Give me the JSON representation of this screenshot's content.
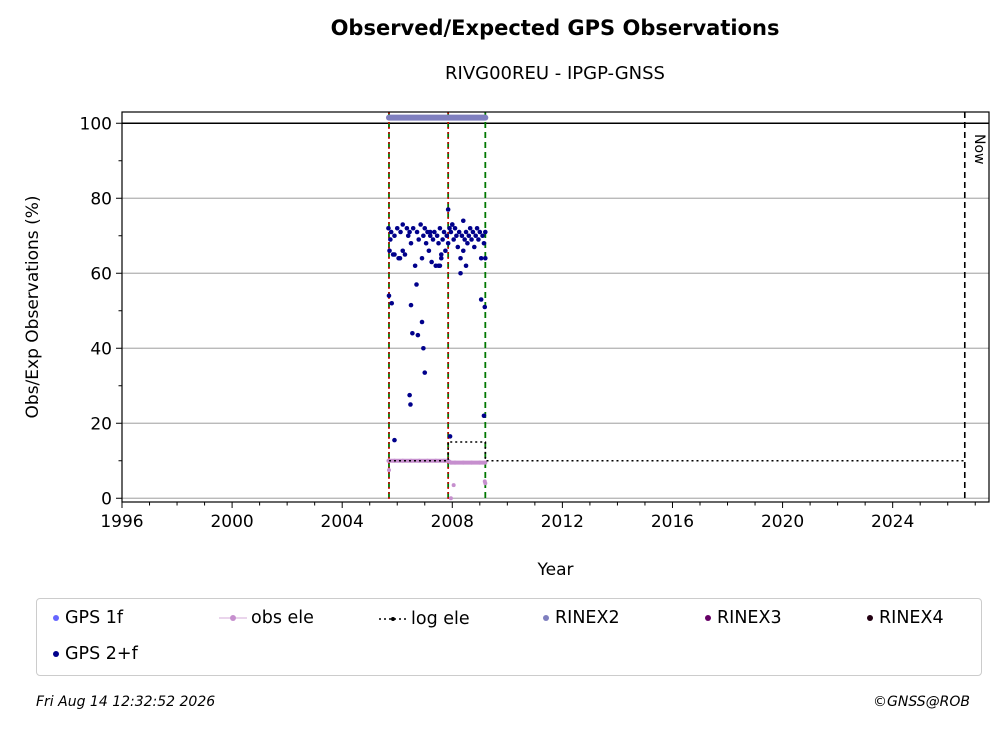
{
  "chart_data": {
    "type": "scatter",
    "title": "Observed/Expected GPS Observations",
    "subtitle": "RIVG00REU - IPGP-GNSS",
    "xlabel": "Year",
    "ylabel": "Obs/Exp Observations (%)",
    "xlim": [
      1996,
      2027.5
    ],
    "ylim": [
      -1,
      103
    ],
    "x_ticks": [
      1996,
      2000,
      2004,
      2008,
      2012,
      2016,
      2020,
      2024
    ],
    "y_ticks": [
      0,
      20,
      40,
      60,
      80,
      100
    ],
    "grid": "horizontal",
    "now_label": "Now",
    "now_x": 2026.62,
    "reference_line_y": 100,
    "red_lines": [
      2005.7,
      2007.85
    ],
    "green_lines": [
      2005.7,
      2007.85,
      2009.2
    ],
    "colors": {
      "gps1f": "#6666ff",
      "gps2f": "#00008b",
      "obs_ele": "#c68fce",
      "log_ele": "#000000",
      "rinex2": "#7f7fbf",
      "rinex3": "#660066",
      "rinex4": "#220011",
      "red": "#cc0000",
      "green": "#007700"
    },
    "series": [
      {
        "name": "GPS 2+f",
        "x": [
          2005.68,
          2005.72,
          2005.78,
          2005.85,
          2005.9,
          2006.0,
          2006.05,
          2006.12,
          2006.2,
          2006.28,
          2006.35,
          2006.4,
          2006.45,
          2006.5,
          2006.58,
          2006.65,
          2006.72,
          2006.78,
          2006.85,
          2006.9,
          2006.95,
          2007.0,
          2007.05,
          2007.1,
          2007.15,
          2007.2,
          2007.25,
          2007.3,
          2007.35,
          2007.4,
          2007.45,
          2007.5,
          2007.55,
          2007.6,
          2007.65,
          2007.7,
          2007.75,
          2007.8,
          2007.85,
          2007.9,
          2007.95,
          2008.0,
          2008.05,
          2008.1,
          2008.15,
          2008.2,
          2008.25,
          2008.3,
          2008.35,
          2008.4,
          2008.45,
          2008.5,
          2008.55,
          2008.6,
          2008.65,
          2008.7,
          2008.75,
          2008.8,
          2008.85,
          2008.9,
          2008.95,
          2009.0,
          2009.05,
          2009.1,
          2009.15,
          2009.2,
          2005.7,
          2005.75,
          2005.8,
          2005.9,
          2006.1,
          2006.45,
          2006.48,
          2006.5,
          2006.55,
          2006.7,
          2006.75,
          2006.9,
          2006.95,
          2007.0,
          2007.2,
          2007.5,
          2007.85,
          2008.3,
          2008.5,
          2009.05,
          2009.15,
          2009.18,
          2009.2,
          2005.9,
          2006.2,
          2007.55,
          2007.6,
          2007.92,
          2008.0,
          2008.4
        ],
        "values": [
          72,
          66,
          71,
          65,
          70,
          72,
          64,
          71,
          73,
          65,
          72,
          70,
          71,
          68,
          72,
          62,
          71,
          69,
          73,
          64,
          70,
          72,
          68,
          71,
          66,
          70,
          63,
          69,
          71,
          62,
          70,
          68,
          72,
          64,
          69,
          71,
          66,
          70,
          68,
          72,
          71,
          73,
          69,
          72,
          70,
          67,
          71,
          64,
          70,
          66,
          69,
          71,
          68,
          70,
          72,
          69,
          71,
          67,
          70,
          72,
          69,
          71,
          64,
          70,
          68,
          71,
          54,
          69,
          52,
          65,
          64,
          27.5,
          25,
          51.5,
          44,
          57,
          43.5,
          47,
          40,
          33.5,
          71,
          62,
          77,
          60,
          62,
          53,
          22,
          51,
          64,
          15.5,
          66,
          62,
          65,
          16.5,
          73,
          74
        ]
      },
      {
        "name": "obs ele",
        "x": [
          2005.68,
          2005.9,
          2006.2,
          2006.5,
          2006.8,
          2007.1,
          2007.4,
          2007.7,
          2007.85,
          2007.95,
          2008.1,
          2008.4,
          2008.7,
          2009.0,
          2009.2,
          2005.7,
          2007.95,
          2008.05,
          2009.18,
          2009.2
        ],
        "values": [
          10,
          10,
          10,
          10,
          10,
          10,
          10,
          10,
          10,
          9.5,
          9.5,
          9.5,
          9.5,
          9.5,
          9.5,
          7.5,
          0,
          3.5,
          4.5,
          4
        ],
        "connected": true
      },
      {
        "name": "log ele",
        "x": [
          2005.7,
          2007.85,
          2007.85,
          2009.2,
          2009.2,
          2026.62
        ],
        "values": [
          10,
          10,
          15,
          15,
          10,
          10
        ]
      },
      {
        "name": "RINEX2",
        "x": [
          2005.7,
          2009.2
        ],
        "values": [
          101.5,
          101.5
        ]
      },
      {
        "name": "GPS 1f",
        "x": [],
        "values": []
      },
      {
        "name": "RINEX3",
        "x": [],
        "values": []
      },
      {
        "name": "RINEX4",
        "x": [],
        "values": []
      }
    ],
    "legend": {
      "placement": "bottom",
      "entries": [
        "GPS 1f",
        "obs ele",
        "log ele",
        "RINEX2",
        "RINEX3",
        "RINEX4",
        "GPS 2+f"
      ]
    }
  },
  "footer": {
    "timestamp": "Fri Aug 14 12:32:52 2026",
    "credit": "©GNSS@ROB"
  }
}
